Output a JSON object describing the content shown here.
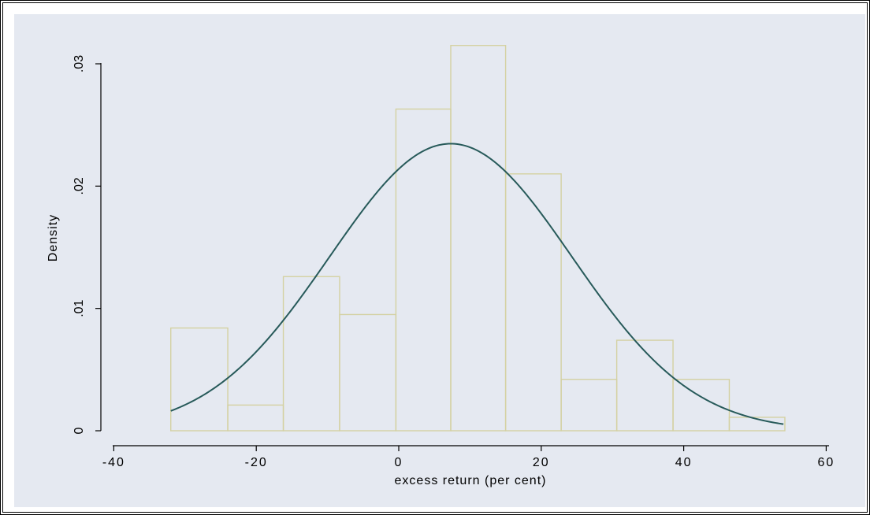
{
  "chart_data": {
    "type": "bar",
    "title": "",
    "xlabel": "excess return (per cent)",
    "ylabel": "Density",
    "xlim": [
      -42,
      62
    ],
    "ylim": [
      0,
      0.0335
    ],
    "x_ticks": [
      {
        "value": -40,
        "label": "-40"
      },
      {
        "value": -20,
        "label": "-20"
      },
      {
        "value": 0,
        "label": "0"
      },
      {
        "value": 20,
        "label": "20"
      },
      {
        "value": 40,
        "label": "40"
      },
      {
        "value": 60,
        "label": "60"
      }
    ],
    "y_ticks": [
      {
        "value": 0,
        "label": "0"
      },
      {
        "value": 0.01,
        "label": ".01"
      },
      {
        "value": 0.02,
        "label": ".02"
      },
      {
        "value": 0.03,
        "label": ".03"
      }
    ],
    "bins": [
      {
        "start": -32.0,
        "end": -24.0,
        "density": 0.0084
      },
      {
        "start": -24.0,
        "end": -16.2,
        "density": 0.0021
      },
      {
        "start": -16.2,
        "end": -8.3,
        "density": 0.0126
      },
      {
        "start": -8.3,
        "end": -0.4,
        "density": 0.0095
      },
      {
        "start": -0.4,
        "end": 7.3,
        "density": 0.0263
      },
      {
        "start": 7.3,
        "end": 15.0,
        "density": 0.0315
      },
      {
        "start": 15.0,
        "end": 22.8,
        "density": 0.021
      },
      {
        "start": 22.8,
        "end": 30.6,
        "density": 0.0042
      },
      {
        "start": 30.6,
        "end": 38.5,
        "density": 0.0074
      },
      {
        "start": 38.5,
        "end": 46.4,
        "density": 0.0042
      },
      {
        "start": 46.4,
        "end": 54.2,
        "density": 0.0011
      }
    ],
    "density_curve": {
      "type": "normal",
      "mean": 7.3,
      "sd": 17.0,
      "x_range": [
        -32,
        54
      ]
    },
    "grid": false,
    "colors": {
      "background": "#e5e9f1",
      "plot_region": "#e5e9f1",
      "bar_outline": "#d4d1a2",
      "curve": "#275a5a",
      "axis": "#000000"
    }
  }
}
